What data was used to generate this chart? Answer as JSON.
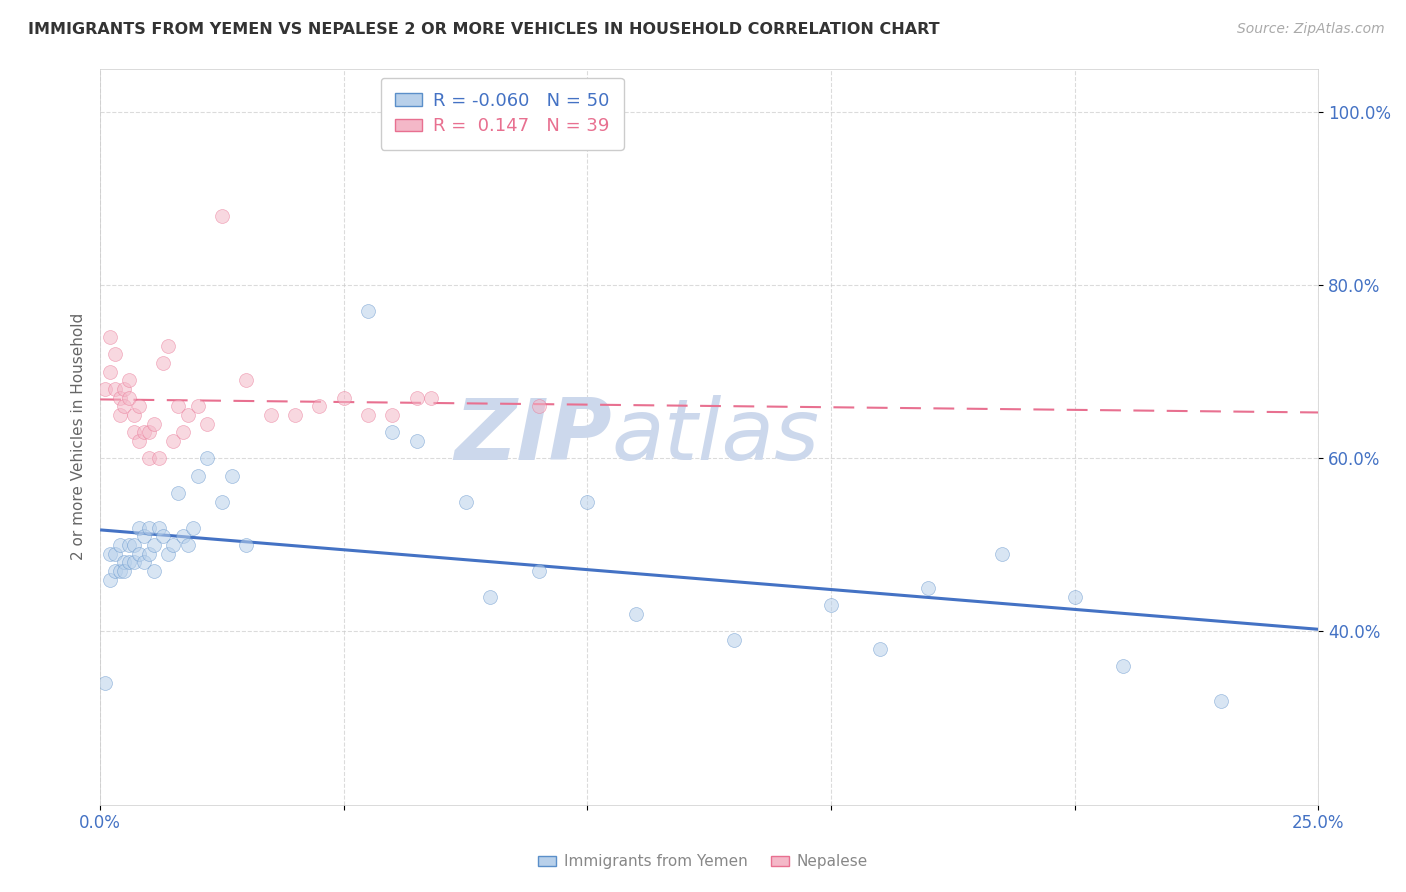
{
  "title": "IMMIGRANTS FROM YEMEN VS NEPALESE 2 OR MORE VEHICLES IN HOUSEHOLD CORRELATION CHART",
  "source": "Source: ZipAtlas.com",
  "ylabel": "2 or more Vehicles in Household",
  "r_values": [
    -0.06,
    0.147
  ],
  "n_values": [
    50,
    39
  ],
  "xlim": [
    0.0,
    0.25
  ],
  "ylim": [
    0.2,
    1.05
  ],
  "yticks": [
    0.4,
    0.6,
    0.8,
    1.0
  ],
  "ytick_labels": [
    "40.0%",
    "60.0%",
    "80.0%",
    "100.0%"
  ],
  "xticks": [
    0.0,
    0.05,
    0.1,
    0.15,
    0.2,
    0.25
  ],
  "xtick_labels": [
    "0.0%",
    "",
    "",
    "",
    "",
    "25.0%"
  ],
  "blue_fill": "#b8d0ea",
  "pink_fill": "#f4b8c8",
  "blue_edge": "#5b8fc9",
  "pink_edge": "#e87090",
  "blue_line": "#4472c4",
  "pink_line": "#e87090",
  "axis_color": "#4472c4",
  "grid_color": "#cccccc",
  "bg_color": "#ffffff",
  "blue_scatter_x": [
    0.001,
    0.002,
    0.002,
    0.003,
    0.003,
    0.004,
    0.004,
    0.005,
    0.005,
    0.006,
    0.006,
    0.007,
    0.007,
    0.008,
    0.008,
    0.009,
    0.009,
    0.01,
    0.01,
    0.011,
    0.011,
    0.012,
    0.013,
    0.014,
    0.015,
    0.016,
    0.017,
    0.018,
    0.019,
    0.02,
    0.022,
    0.025,
    0.027,
    0.03,
    0.055,
    0.06,
    0.065,
    0.075,
    0.08,
    0.09,
    0.1,
    0.11,
    0.13,
    0.15,
    0.16,
    0.17,
    0.185,
    0.2,
    0.21,
    0.23
  ],
  "blue_scatter_y": [
    0.34,
    0.49,
    0.46,
    0.49,
    0.47,
    0.5,
    0.47,
    0.48,
    0.47,
    0.5,
    0.48,
    0.5,
    0.48,
    0.52,
    0.49,
    0.51,
    0.48,
    0.52,
    0.49,
    0.5,
    0.47,
    0.52,
    0.51,
    0.49,
    0.5,
    0.56,
    0.51,
    0.5,
    0.52,
    0.58,
    0.6,
    0.55,
    0.58,
    0.5,
    0.77,
    0.63,
    0.62,
    0.55,
    0.44,
    0.47,
    0.55,
    0.42,
    0.39,
    0.43,
    0.38,
    0.45,
    0.49,
    0.44,
    0.36,
    0.32
  ],
  "pink_scatter_x": [
    0.001,
    0.002,
    0.002,
    0.003,
    0.003,
    0.004,
    0.004,
    0.005,
    0.005,
    0.006,
    0.006,
    0.007,
    0.007,
    0.008,
    0.008,
    0.009,
    0.01,
    0.01,
    0.011,
    0.012,
    0.013,
    0.014,
    0.015,
    0.016,
    0.017,
    0.018,
    0.02,
    0.022,
    0.025,
    0.03,
    0.035,
    0.04,
    0.045,
    0.05,
    0.055,
    0.06,
    0.065,
    0.068,
    0.09
  ],
  "pink_scatter_y": [
    0.68,
    0.74,
    0.7,
    0.72,
    0.68,
    0.67,
    0.65,
    0.68,
    0.66,
    0.69,
    0.67,
    0.65,
    0.63,
    0.66,
    0.62,
    0.63,
    0.6,
    0.63,
    0.64,
    0.6,
    0.71,
    0.73,
    0.62,
    0.66,
    0.63,
    0.65,
    0.66,
    0.64,
    0.88,
    0.69,
    0.65,
    0.65,
    0.66,
    0.67,
    0.65,
    0.65,
    0.67,
    0.67,
    0.66
  ],
  "marker_size": 100,
  "marker_alpha": 0.55
}
